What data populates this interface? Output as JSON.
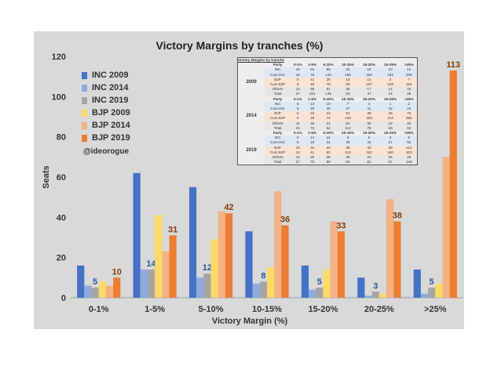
{
  "chart_data": {
    "type": "bar",
    "title": "Victory Margins by tranches (%)",
    "xlabel": "Victory Margin (%)",
    "ylabel": "Seats",
    "ylim": [
      0,
      120
    ],
    "yticks": [
      0,
      20,
      40,
      60,
      80,
      100,
      120
    ],
    "grid": false,
    "legend_placement": "top-left",
    "categories": [
      "0-1%",
      "1-5%",
      "5-10%",
      "10-15%",
      "15-20%",
      "20-25%",
      ">25%"
    ],
    "series": [
      {
        "name": "INC 2009",
        "color": "#4472C4",
        "values": [
          16,
          62,
          55,
          33,
          16,
          10,
          14
        ]
      },
      {
        "name": "INC 2014",
        "color": "#8FAADC",
        "values": [
          6,
          14,
          10,
          7,
          4,
          1,
          2
        ]
      },
      {
        "name": "INC 2019",
        "color": "#A5A5A5",
        "values": [
          5,
          14,
          12,
          8,
          5,
          3,
          5
        ],
        "labels": true,
        "label_color": "#2F5597"
      },
      {
        "name": "BJP 2009",
        "color": "#FFD966",
        "values": [
          8,
          41,
          29,
          15,
          14,
          2,
          7
        ]
      },
      {
        "name": "BJP 2014",
        "color": "#F4B183",
        "values": [
          6,
          23,
          43,
          53,
          38,
          49,
          70
        ]
      },
      {
        "name": "BJP 2019",
        "color": "#ED7D31",
        "values": [
          10,
          31,
          42,
          36,
          33,
          38,
          113
        ],
        "labels": true,
        "label_color": "#843C0C"
      }
    ],
    "annotation": "@ideorogue"
  },
  "table": {
    "title": "Victory Margins by tranche",
    "header": [
      "Party",
      "0-1%",
      "1-5%",
      "5-10%",
      "10-15%",
      "15-20%",
      "20-25%",
      ">25%"
    ],
    "blocks": [
      {
        "year": "2009",
        "rows": [
          [
            "INC",
            16,
            62,
            55,
            33,
            16,
            10,
            14
          ],
          [
            "Cum INC",
            16,
            78,
            133,
            166,
            182,
            192,
            206
          ],
          [
            "BJP",
            8,
            41,
            29,
            15,
            14,
            2,
            7
          ],
          [
            "Cum BJP",
            8,
            49,
            78,
            93,
            107,
            109,
            116
          ],
          [
            "Others",
            13,
            58,
            61,
            45,
            17,
            12,
            15
          ],
          [
            "Total",
            37,
            161,
            145,
            93,
            47,
            24,
            36
          ]
        ]
      },
      {
        "year": "2014",
        "rows": [
          [
            "INC",
            6,
            14,
            10,
            7,
            4,
            1,
            2
          ],
          [
            "Cum INC",
            6,
            20,
            30,
            37,
            41,
            42,
            44
          ],
          [
            "BJP",
            6,
            23,
            43,
            53,
            38,
            49,
            70
          ],
          [
            "Cum BJP",
            6,
            29,
            72,
            125,
            163,
            212,
            282
          ],
          [
            "Others",
            11,
            36,
            41,
            52,
            36,
            19,
            22
          ],
          [
            "Total",
            23,
            73,
            94,
            112,
            78,
            69,
            94
          ]
        ]
      },
      {
        "year": "2019",
        "rows": [
          [
            "INC",
            5,
            14,
            12,
            8,
            5,
            3,
            5
          ],
          [
            "Cum INC",
            5,
            19,
            31,
            39,
            44,
            47,
            52
          ],
          [
            "BJP",
            10,
            31,
            42,
            36,
            33,
            38,
            113
          ],
          [
            "Cum BJP",
            10,
            41,
            83,
            119,
            152,
            190,
            303
          ],
          [
            "Others",
            12,
            25,
            35,
            39,
            23,
            26,
            28
          ],
          [
            "Total",
            27,
            70,
            89,
            83,
            61,
            67,
            146
          ]
        ]
      }
    ]
  }
}
